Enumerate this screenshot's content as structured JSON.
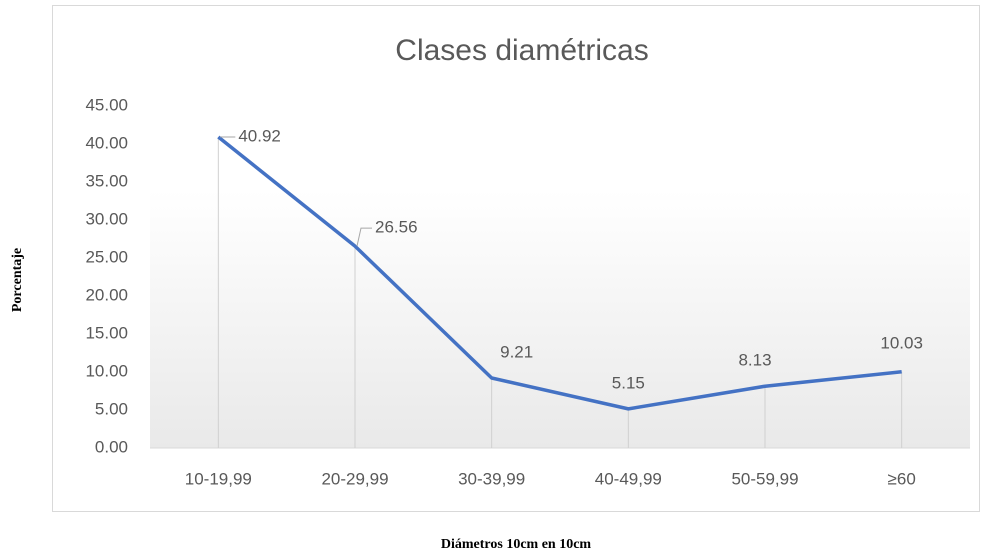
{
  "chart_data": {
    "type": "line",
    "title": "Clases diamétricas",
    "x_label": "Diámetros 10cm en 10cm",
    "y_label": "Porcentaje",
    "categories": [
      "10-19,99",
      "20-29,99",
      "30-39,99",
      "40-49,99",
      "50-59,99",
      "≥60"
    ],
    "values": [
      40.92,
      26.56,
      9.21,
      5.15,
      8.13,
      10.03
    ],
    "color": "#4472c4",
    "ylim": [
      0,
      45
    ],
    "yticks": [
      {
        "value": 0,
        "label": "0.00"
      },
      {
        "value": 5,
        "label": "5.00"
      },
      {
        "value": 10,
        "label": "10.00"
      },
      {
        "value": 15,
        "label": "15.00"
      },
      {
        "value": 20,
        "label": "20.00"
      },
      {
        "value": 25,
        "label": "25.00"
      },
      {
        "value": 30,
        "label": "30.00"
      },
      {
        "value": 35,
        "label": "35.00"
      },
      {
        "value": 40,
        "label": "40.00"
      },
      {
        "value": 45,
        "label": "45.00"
      }
    ],
    "grid": false
  }
}
